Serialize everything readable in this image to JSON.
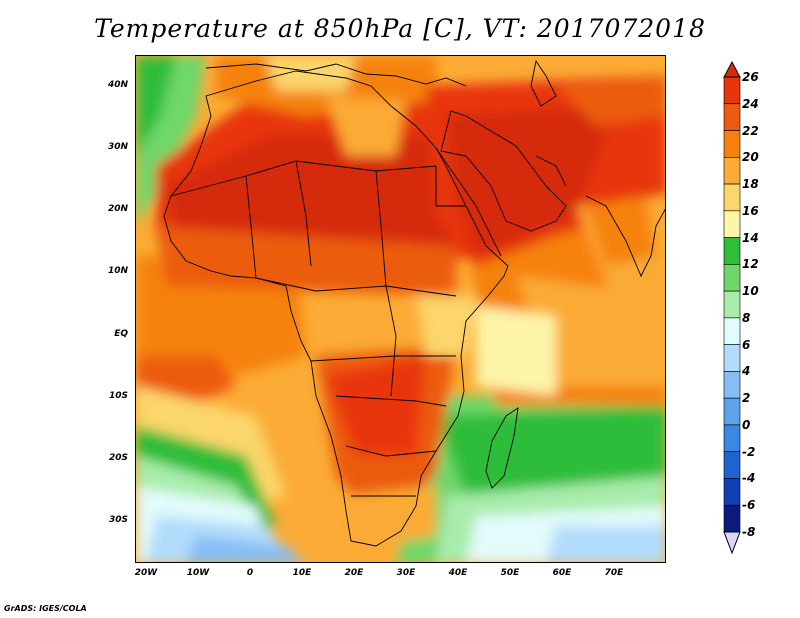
{
  "title": "Temperature at 850hPa [C], VT: 2017072018",
  "credit": "GrADS: IGES/COLA",
  "map": {
    "lat_ticks": [
      "40N",
      "30N",
      "20N",
      "10N",
      "EQ",
      "10S",
      "20S",
      "30S"
    ],
    "lon_ticks": [
      "20W",
      "10W",
      "0",
      "10E",
      "20E",
      "30E",
      "40E",
      "50E",
      "60E",
      "70E"
    ],
    "region": "Africa and Middle East",
    "lon_range": [
      -22,
      80
    ],
    "lat_range": [
      -37,
      45
    ]
  },
  "colorbar": {
    "labels": [
      "26",
      "24",
      "22",
      "20",
      "18",
      "16",
      "14",
      "12",
      "10",
      "8",
      "6",
      "4",
      "2",
      "0",
      "-2",
      "-4",
      "-6",
      "-8"
    ],
    "colors": {
      "26+": "#d62a0e",
      "24-26": "#e8350c",
      "22-24": "#ec5b0f",
      "20-22": "#f5820f",
      "18-20": "#fbab36",
      "16-18": "#fbd66c",
      "14-16": "#fdf5a8",
      "12-14": "#2fbd3a",
      "10-12": "#6fd76a",
      "8-10": "#a8ecaa",
      "6-8": "#e2fbfb",
      "4-6": "#b2dcfb",
      "2-4": "#86bdf4",
      "0-2": "#5ea2ea",
      "-2-0": "#3a88e3",
      "-4--2": "#1d64d1",
      "-6--4": "#0d40b4",
      "-8--6": "#0b1a7c",
      "below": "#dcd4fb"
    }
  }
}
